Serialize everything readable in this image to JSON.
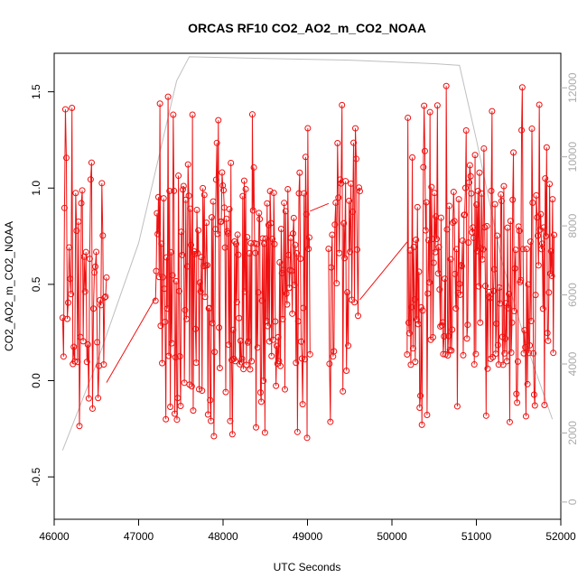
{
  "chart_data": {
    "type": "line",
    "title": "ORCAS RF10 CO2_AO2_m_CO2_NOAA",
    "xlabel": "UTC Seconds",
    "ylabel": "CO2_AO2_m_CO2_NOAA",
    "xlim": [
      46000,
      52000
    ],
    "ylim": [
      -0.72,
      1.7
    ],
    "y2lim": [
      -500,
      13000
    ],
    "xticks": [
      46000,
      47000,
      48000,
      49000,
      50000,
      51000,
      52000
    ],
    "yticks": [
      -0.5,
      0.0,
      0.5,
      1.0,
      1.5
    ],
    "y2ticks": [
      0,
      2000,
      4000,
      6000,
      8000,
      10000,
      12000
    ],
    "xtick_labels": [
      "46000",
      "47000",
      "48000",
      "49000",
      "50000",
      "51000",
      "52000"
    ],
    "ytick_labels": [
      "-0.5",
      "0.0",
      "0.5",
      "1.0",
      "1.5"
    ],
    "y2tick_labels": [
      "0",
      "2000",
      "4000",
      "6000",
      "8000",
      "10000",
      "12000"
    ],
    "grid": false,
    "series": [
      {
        "color": "#ee1111",
        "axis": "left",
        "marker": "open-circle",
        "segments": [
          {
            "x0": 46100,
            "x1": 46620,
            "n": 48,
            "seed": 11
          },
          {
            "x0": 47200,
            "x1": 49030,
            "n": 210,
            "seed": 23
          },
          {
            "x0": 49250,
            "x1": 49620,
            "n": 36,
            "seed": 37
          },
          {
            "x0": 50180,
            "x1": 51920,
            "n": 200,
            "seed": 53
          }
        ],
        "connectors": [
          {
            "x": [
              46620,
              47200
            ],
            "y": [
              -0.01,
              0.43
            ]
          },
          {
            "x": [
              49030,
              49250
            ],
            "y": [
              0.88,
              0.92
            ]
          },
          {
            "x": [
              49620,
              50180
            ],
            "y": [
              0.42,
              0.72
            ]
          }
        ]
      },
      {
        "color": "#bfbfbf",
        "axis": "right",
        "marker": "none",
        "x": [
          46100,
          46500,
          47000,
          47450,
          47600,
          48500,
          49500,
          50500,
          50800,
          51000,
          51300,
          51600,
          51900
        ],
        "y": [
          1500,
          4000,
          7500,
          12200,
          12900,
          12850,
          12800,
          12700,
          12650,
          10500,
          7000,
          4500,
          2400
        ]
      }
    ]
  }
}
